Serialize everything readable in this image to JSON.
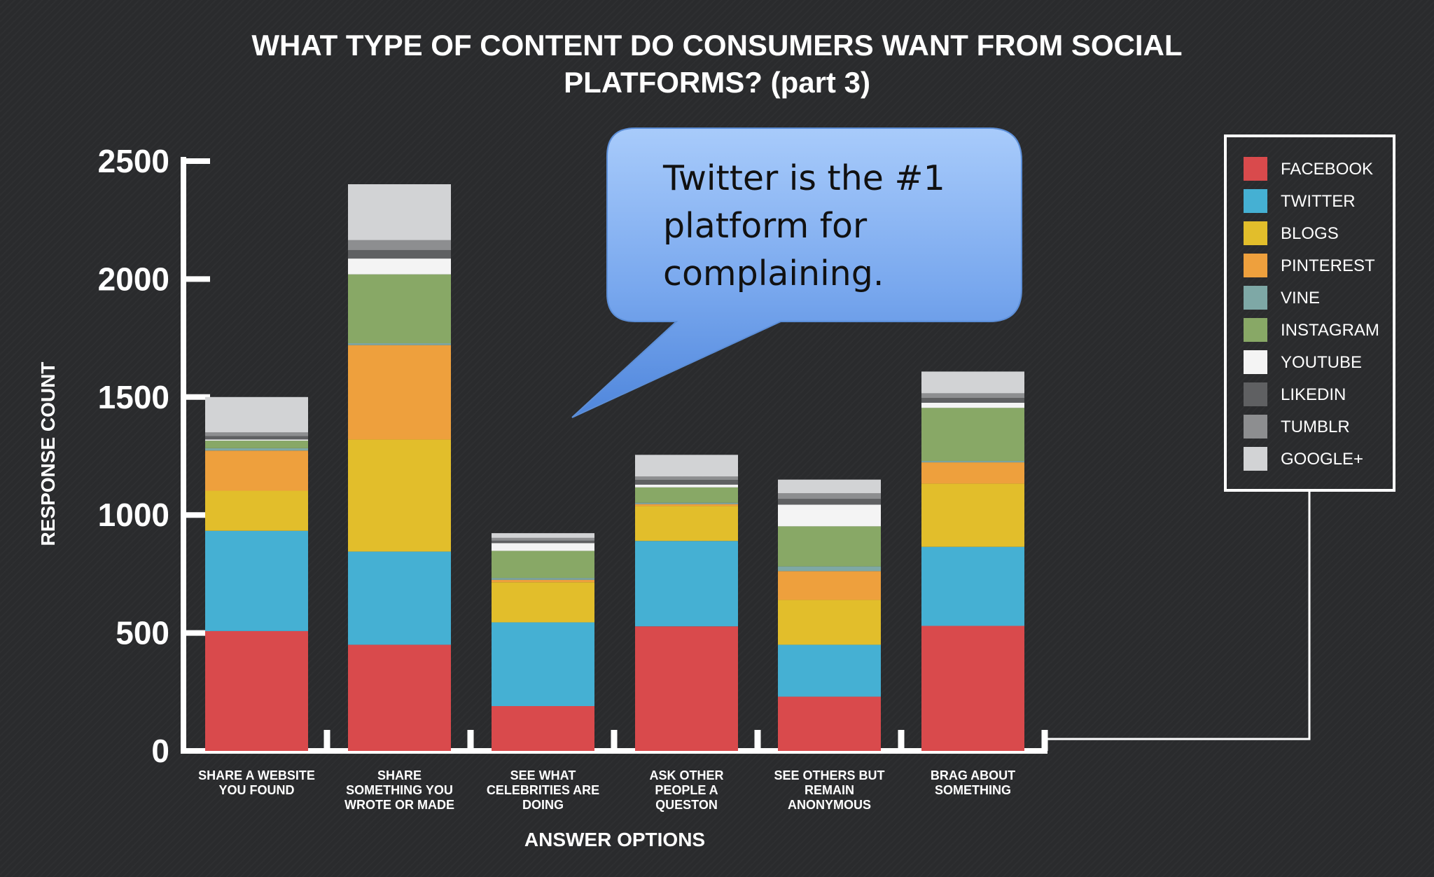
{
  "title": [
    "WHAT TYPE OF CONTENT DO CONSUMERS WANT FROM SOCIAL",
    "PLATFORMS?   (part 3)"
  ],
  "callout": [
    "Twitter is the #1",
    "platform for",
    "complaining."
  ],
  "chart_data": {
    "type": "bar",
    "stacked": true,
    "xlabel": "ANSWER OPTIONS",
    "ylabel": "RESPONSE COUNT",
    "ylim": [
      0,
      2500
    ],
    "yticks": [
      0,
      500,
      1000,
      1500,
      2000,
      2500
    ],
    "grid": false,
    "legend_position": "right",
    "categories": [
      [
        "SHARE A WEBSITE",
        "YOU FOUND"
      ],
      [
        "SHARE",
        "SOMETHING YOU",
        "WROTE OR MADE"
      ],
      [
        "SEE WHAT",
        "CELEBRITIES ARE",
        "DOING"
      ],
      [
        "ASK OTHER",
        "PEOPLE A",
        "QUESTON"
      ],
      [
        "SEE OTHERS BUT",
        "REMAIN",
        "ANONYMOUS"
      ],
      [
        "BRAG ABOUT",
        "SOMETHING"
      ]
    ],
    "series": [
      {
        "name": "FACEBOOK",
        "color": "#d94a4c",
        "values": [
          508,
          450,
          190,
          528,
          230,
          530
        ]
      },
      {
        "name": "TWITTER",
        "color": "#45b0d3",
        "values": [
          425,
          395,
          355,
          362,
          220,
          335
        ]
      },
      {
        "name": "BLOGS",
        "color": "#e2be2b",
        "values": [
          170,
          475,
          170,
          148,
          190,
          268
        ]
      },
      {
        "name": "PINTEREST",
        "color": "#eea03d",
        "values": [
          170,
          400,
          10,
          8,
          122,
          90
        ]
      },
      {
        "name": "VINE",
        "color": "#7ea8a6",
        "values": [
          10,
          8,
          8,
          6,
          20,
          6
        ]
      },
      {
        "name": "INSTAGRAM",
        "color": "#88a866",
        "values": [
          32,
          292,
          115,
          65,
          170,
          225
        ]
      },
      {
        "name": "YOUTUBE",
        "color": "#f4f4f4",
        "values": [
          5,
          67,
          33,
          12,
          92,
          22
        ]
      },
      {
        "name": "LIKEDIN",
        "color": "#5f6062",
        "values": [
          14,
          36,
          10,
          20,
          24,
          20
        ]
      },
      {
        "name": "TUMBLR",
        "color": "#8d8e90",
        "values": [
          16,
          42,
          12,
          14,
          24,
          20
        ]
      },
      {
        "name": "GOOGLE+",
        "color": "#d2d3d5",
        "values": [
          150,
          237,
          20,
          92,
          58,
          92
        ]
      }
    ]
  }
}
